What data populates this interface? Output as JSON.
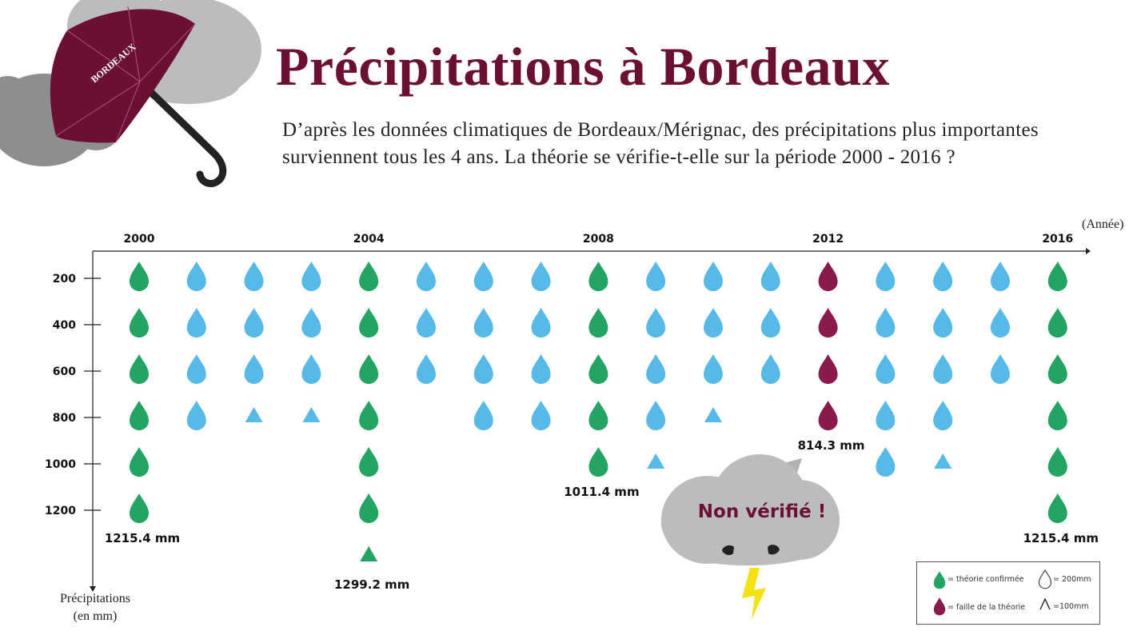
{
  "title": "Précipitations à Bordeaux",
  "subtitle": "D’après les données climatiques de Bordeaux/Mérignac, des précipitations plus importantes surviennent tous les 4 ans. La théorie se vérifie-t-elle sur la période 2000 - 2016 ?",
  "umbrella_text": "BORDEAUX",
  "cloud_text": "Non vérifié !",
  "colors": {
    "title": "#6b1033",
    "confirmed": "#23a462",
    "flaw": "#8b1a4c",
    "regular": "#56b9e8",
    "cloud": "#bcbcbf",
    "cloud_dark": "#8e8e91",
    "umbrella": "#6b0f35",
    "lightning": "#f2e213"
  },
  "legend": {
    "confirmed": "= théorie confirmée",
    "flaw": "= faille de la théorie",
    "drop_full": "= 200mm",
    "drop_half": "=100mm"
  },
  "chart_data": {
    "type": "pictogram",
    "x_label": "(Année)",
    "y_label_line1": "Précipitations",
    "y_label_line2": "(en mm)",
    "x_ticks": [
      "2000",
      "2004",
      "2008",
      "2012",
      "2016"
    ],
    "y_ticks": [
      "200",
      "400",
      "600",
      "800",
      "1000",
      "1200"
    ],
    "unit": "mm",
    "full_drop_mm": 200,
    "half_drop_mm": 100,
    "series": [
      {
        "name": "théorie confirmée",
        "color_key": "confirmed"
      },
      {
        "name": "faille de la théorie",
        "color_key": "flaw"
      }
    ],
    "years": [
      {
        "year": 2000,
        "status": "confirmed",
        "drops": 6,
        "half": 0,
        "label": "1215.4 mm"
      },
      {
        "year": 2001,
        "status": "regular",
        "drops": 4,
        "half": 0
      },
      {
        "year": 2002,
        "status": "regular",
        "drops": 3,
        "half": 1
      },
      {
        "year": 2003,
        "status": "regular",
        "drops": 3,
        "half": 1
      },
      {
        "year": 2004,
        "status": "confirmed",
        "drops": 6,
        "half": 1,
        "label": "1299.2 mm"
      },
      {
        "year": 2005,
        "status": "regular",
        "drops": 3,
        "half": 0
      },
      {
        "year": 2006,
        "status": "regular",
        "drops": 4,
        "half": 0
      },
      {
        "year": 2007,
        "status": "regular",
        "drops": 4,
        "half": 0
      },
      {
        "year": 2008,
        "status": "confirmed",
        "drops": 5,
        "half": 0,
        "label": "1011.4 mm"
      },
      {
        "year": 2009,
        "status": "regular",
        "drops": 4,
        "half": 1
      },
      {
        "year": 2010,
        "status": "regular",
        "drops": 3,
        "half": 1
      },
      {
        "year": 2011,
        "status": "regular",
        "drops": 3,
        "half": 0
      },
      {
        "year": 2012,
        "status": "flaw",
        "drops": 4,
        "half": 0,
        "label": "814.3 mm"
      },
      {
        "year": 2013,
        "status": "regular",
        "drops": 5,
        "half": 0
      },
      {
        "year": 2014,
        "status": "regular",
        "drops": 4,
        "half": 1
      },
      {
        "year": 2015,
        "status": "regular",
        "drops": 3,
        "half": 0
      },
      {
        "year": 2016,
        "status": "confirmed",
        "drops": 6,
        "half": 0,
        "label": "1215.4 mm"
      }
    ]
  }
}
